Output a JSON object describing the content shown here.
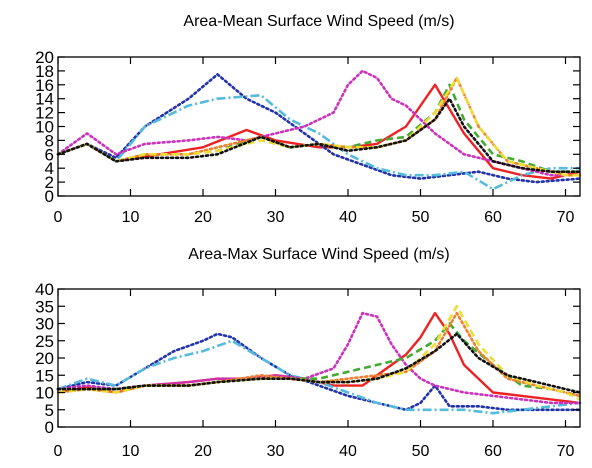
{
  "chart_data": [
    {
      "type": "line",
      "title": "Area-Mean Surface Wind Speed (m/s)",
      "xlabel": "",
      "ylabel": "",
      "xlim": [
        0,
        72
      ],
      "ylim": [
        0,
        20
      ],
      "xticks": [
        "0",
        "10",
        "20",
        "30",
        "40",
        "50",
        "60",
        "70"
      ],
      "yticks": [
        "0",
        "2",
        "4",
        "6",
        "8",
        "10",
        "12",
        "14",
        "16",
        "18",
        "20"
      ],
      "grid": false,
      "series": [
        {
          "color": "#ee2222",
          "dash": "solid",
          "x": [
            0,
            4,
            8,
            14,
            20,
            26,
            30,
            36,
            40,
            44,
            48,
            52,
            56,
            60,
            64,
            68,
            72
          ],
          "y": [
            6,
            7.5,
            5,
            6,
            7,
            9.5,
            8,
            7,
            7,
            7.5,
            10,
            16,
            9,
            4,
            3,
            2.5,
            3.5
          ]
        },
        {
          "color": "#2233aa",
          "dash": "dotted",
          "x": [
            0,
            4,
            8,
            12,
            18,
            22,
            26,
            30,
            34,
            38,
            42,
            46,
            50,
            54,
            58,
            62,
            66,
            72
          ],
          "y": [
            6,
            7.5,
            5.5,
            10,
            14,
            17.5,
            14,
            12,
            9,
            6,
            4.5,
            3,
            2.5,
            3,
            3.5,
            2.5,
            2,
            2.5
          ]
        },
        {
          "color": "#55bbdd",
          "dash": "dashdot",
          "x": [
            0,
            4,
            8,
            12,
            18,
            22,
            28,
            32,
            36,
            40,
            44,
            48,
            52,
            56,
            60,
            64,
            68,
            72
          ],
          "y": [
            6,
            7.5,
            5,
            10,
            13,
            14,
            14.5,
            11,
            9,
            6,
            4,
            3,
            3,
            3.5,
            1,
            3,
            4,
            4
          ]
        },
        {
          "color": "#cc33bb",
          "dash": "dotted",
          "x": [
            0,
            4,
            8,
            12,
            18,
            22,
            26,
            30,
            34,
            38,
            40,
            42,
            44,
            46,
            48,
            52,
            56,
            60,
            64,
            68,
            72
          ],
          "y": [
            6,
            9,
            6,
            7.5,
            8,
            8.5,
            8,
            9,
            10,
            12,
            16,
            18,
            17,
            14,
            13,
            9,
            6,
            5,
            4,
            3,
            3
          ]
        },
        {
          "color": "#44aa33",
          "dash": "dashed",
          "x": [
            0,
            4,
            8,
            12,
            18,
            22,
            28,
            32,
            36,
            40,
            44,
            48,
            52,
            54,
            56,
            60,
            64,
            68,
            72
          ],
          "y": [
            6,
            7.5,
            5,
            6,
            6,
            6.5,
            8.5,
            7,
            7.5,
            7,
            8,
            8.5,
            12,
            16,
            11,
            6,
            5,
            3.5,
            3.5
          ]
        },
        {
          "color": "#f08030",
          "dash": "dotted",
          "x": [
            0,
            4,
            8,
            12,
            18,
            22,
            28,
            32,
            36,
            40,
            44,
            48,
            52,
            55,
            58,
            62,
            66,
            70,
            72
          ],
          "y": [
            6,
            7.5,
            5,
            6,
            6,
            7,
            8.5,
            7,
            7.5,
            7,
            7,
            8,
            11,
            17,
            10,
            5,
            4,
            3,
            3
          ]
        },
        {
          "color": "#eedd33",
          "dash": "dashed",
          "x": [
            0,
            4,
            8,
            12,
            18,
            22,
            28,
            32,
            36,
            40,
            44,
            48,
            52,
            55,
            58,
            62,
            66,
            70,
            72
          ],
          "y": [
            6,
            7.5,
            5,
            6,
            6,
            6.5,
            8,
            7,
            7.5,
            7,
            7,
            8,
            12,
            17,
            10,
            5,
            4,
            3,
            3
          ]
        },
        {
          "color": "#111111",
          "dash": "dotted",
          "x": [
            0,
            4,
            8,
            12,
            18,
            22,
            28,
            32,
            36,
            40,
            44,
            48,
            52,
            54,
            56,
            60,
            64,
            68,
            72
          ],
          "y": [
            6,
            7.5,
            5,
            5.5,
            5.5,
            6,
            8.5,
            7,
            7.5,
            6.5,
            7,
            8,
            11,
            14,
            10,
            5,
            4,
            3.5,
            3.5
          ]
        }
      ]
    },
    {
      "type": "line",
      "title": "Area-Max Surface Wind Speed (m/s)",
      "xlabel": "",
      "ylabel": "",
      "xlim": [
        0,
        72
      ],
      "ylim": [
        0,
        40
      ],
      "xticks": [
        "0",
        "10",
        "20",
        "30",
        "40",
        "50",
        "60",
        "70"
      ],
      "yticks": [
        "0",
        "5",
        "10",
        "15",
        "20",
        "25",
        "30",
        "35",
        "40"
      ],
      "grid": false,
      "series": [
        {
          "color": "#ee2222",
          "dash": "solid",
          "x": [
            0,
            4,
            8,
            12,
            18,
            22,
            26,
            30,
            34,
            38,
            42,
            46,
            48,
            50,
            52,
            54,
            56,
            60,
            64,
            68,
            72
          ],
          "y": [
            10,
            11.5,
            10,
            12,
            13,
            14,
            14,
            15,
            14,
            12,
            12,
            18,
            21,
            26,
            33,
            27,
            18,
            10,
            9,
            8,
            7
          ]
        },
        {
          "color": "#2233aa",
          "dash": "dotted",
          "x": [
            0,
            4,
            8,
            12,
            16,
            20,
            22,
            24,
            28,
            32,
            36,
            40,
            44,
            48,
            50,
            52,
            54,
            58,
            62,
            66,
            72
          ],
          "y": [
            11,
            13,
            12,
            17,
            22,
            25,
            27,
            26,
            20,
            15,
            12,
            9,
            7,
            5,
            7,
            12,
            6,
            6,
            5,
            5,
            5
          ]
        },
        {
          "color": "#55bbdd",
          "dash": "dashdot",
          "x": [
            0,
            4,
            8,
            12,
            16,
            20,
            24,
            28,
            32,
            36,
            40,
            44,
            48,
            52,
            56,
            60,
            64,
            68,
            72
          ],
          "y": [
            11,
            14,
            12,
            17,
            20,
            22,
            25,
            20,
            15,
            13,
            10,
            7,
            5,
            5,
            5,
            4,
            5,
            6,
            7
          ]
        },
        {
          "color": "#cc33bb",
          "dash": "dotted",
          "x": [
            0,
            4,
            8,
            12,
            18,
            22,
            26,
            30,
            34,
            38,
            40,
            42,
            44,
            46,
            48,
            50,
            52,
            56,
            60,
            64,
            68,
            72
          ],
          "y": [
            11,
            12,
            11,
            12,
            13,
            14,
            14,
            15,
            14,
            17,
            24,
            33,
            32,
            24,
            18,
            14,
            12,
            10,
            9,
            8,
            7,
            7
          ]
        },
        {
          "color": "#44aa33",
          "dash": "dashed",
          "x": [
            0,
            4,
            8,
            12,
            18,
            22,
            28,
            32,
            36,
            40,
            44,
            48,
            52,
            54,
            56,
            60,
            64,
            68,
            72
          ],
          "y": [
            10,
            11,
            11,
            12,
            12,
            13,
            14,
            14,
            14,
            16,
            18,
            20,
            25,
            30,
            25,
            18,
            12,
            11,
            9
          ]
        },
        {
          "color": "#f08030",
          "dash": "dotted",
          "x": [
            0,
            4,
            8,
            12,
            18,
            22,
            28,
            32,
            36,
            40,
            44,
            48,
            52,
            55,
            58,
            62,
            66,
            70,
            72
          ],
          "y": [
            10,
            11,
            10,
            12,
            12,
            13,
            15,
            14,
            13,
            14,
            15,
            16,
            22,
            33,
            22,
            14,
            12,
            10,
            9
          ]
        },
        {
          "color": "#eedd33",
          "dash": "dashed",
          "x": [
            0,
            4,
            8,
            12,
            18,
            22,
            28,
            32,
            36,
            40,
            44,
            48,
            52,
            55,
            58,
            62,
            66,
            70,
            72
          ],
          "y": [
            10,
            11,
            10,
            12,
            12,
            13,
            14,
            14,
            13,
            13,
            14,
            16,
            24,
            35,
            24,
            15,
            12,
            10,
            8
          ]
        },
        {
          "color": "#111111",
          "dash": "dotted",
          "x": [
            0,
            4,
            8,
            12,
            18,
            22,
            28,
            32,
            36,
            40,
            44,
            48,
            52,
            55,
            58,
            62,
            66,
            70,
            72
          ],
          "y": [
            11,
            11,
            11,
            12,
            12,
            13,
            14,
            14,
            13,
            13,
            14,
            17,
            22,
            27,
            20,
            15,
            13,
            11,
            10
          ]
        }
      ]
    }
  ]
}
